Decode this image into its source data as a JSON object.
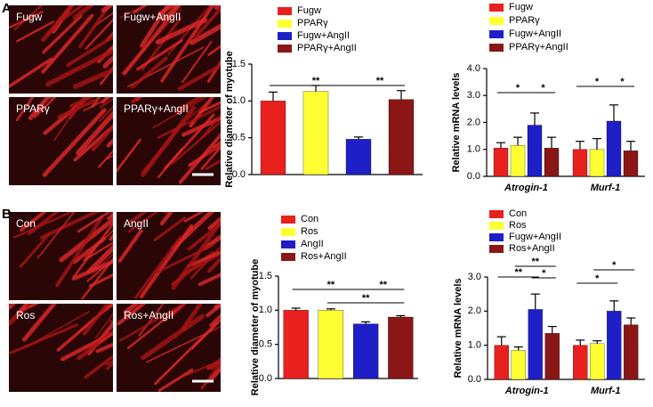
{
  "panel_labels": [
    "A",
    "B"
  ],
  "image_labels": [
    [
      "Fugw",
      "Fugw+AngII",
      "PPARγ",
      "PPARγ+AngII"
    ],
    [
      "Con",
      "AngII",
      "Ros",
      "Ros+AngII"
    ]
  ],
  "chart_data": [
    {
      "type": "bar",
      "ylabel": "Relative diameter of myotube",
      "categories": [
        "Fugw",
        "PPARγ",
        "Fugw+AngII",
        "PPARγ+AngII"
      ],
      "values": [
        1.0,
        1.13,
        0.48,
        1.02
      ],
      "errors": [
        0.12,
        0.08,
        0.03,
        0.12
      ],
      "colors": [
        "#e8201e",
        "#ffff33",
        "#1f1fc8",
        "#8b1616"
      ],
      "ylim": [
        0,
        1.5
      ],
      "yticks": [
        {
          "value": 0,
          "label": "0.0"
        },
        0.5,
        {
          "value": 1,
          "label": "1.0"
        },
        1.5
      ],
      "annotations": [
        "**",
        "**"
      ]
    },
    {
      "type": "grouped_bar",
      "ylabel": "Relative mRNA levels",
      "categories": [
        "Atrogin-1",
        "Murf-1"
      ],
      "series": [
        {
          "name": "Fugw",
          "color": "#e8201e",
          "values": [
            1.05,
            1.0
          ],
          "errors": [
            0.2,
            0.3
          ]
        },
        {
          "name": "PPARγ",
          "color": "#ffff33",
          "values": [
            1.15,
            1.0
          ],
          "errors": [
            0.3,
            0.4
          ]
        },
        {
          "name": "Fugw+AngII",
          "color": "#1f1fc8",
          "values": [
            1.9,
            2.05
          ],
          "errors": [
            0.45,
            0.6
          ]
        },
        {
          "name": "PPARγ+AngII",
          "color": "#8b1616",
          "values": [
            1.05,
            0.95
          ],
          "errors": [
            0.4,
            0.35
          ]
        }
      ],
      "ylim": [
        0,
        4
      ],
      "yticks": [
        {
          "value": 0,
          "label": "0.0"
        },
        {
          "value": 1,
          "label": "1.0"
        },
        {
          "value": 2,
          "label": "2.0"
        },
        {
          "value": 3,
          "label": "3.0"
        },
        {
          "value": 4,
          "label": "4.0"
        }
      ],
      "annotations": [
        "*",
        "*",
        "*",
        "*"
      ]
    },
    {
      "type": "bar",
      "ylabel": "Relative diameter of myotube",
      "categories": [
        "Con",
        "Ros",
        "AngII",
        "Ros+AngII"
      ],
      "values": [
        1.0,
        1.0,
        0.8,
        0.9
      ],
      "errors": [
        0.03,
        0.02,
        0.03,
        0.02
      ],
      "colors": [
        "#e8201e",
        "#ffff33",
        "#1f1fc8",
        "#8b1616"
      ],
      "ylim": [
        0,
        1.5
      ],
      "yticks": [
        {
          "value": 0,
          "label": "0.0"
        },
        0.5,
        {
          "value": 1,
          "label": "1.0"
        },
        1.5
      ],
      "annotations": [
        "**",
        "**",
        "**"
      ]
    },
    {
      "type": "grouped_bar",
      "ylabel": "Relative mRNA levels",
      "categories": [
        "Atrogin-1",
        "Murf-1"
      ],
      "series": [
        {
          "name": "Con",
          "color": "#e8201e",
          "values": [
            1.0,
            1.0
          ],
          "errors": [
            0.25,
            0.15
          ]
        },
        {
          "name": "Ros",
          "color": "#ffff33",
          "values": [
            0.85,
            1.05
          ],
          "errors": [
            0.1,
            0.08
          ]
        },
        {
          "name": "Fugw+AngII",
          "color": "#1f1fc8",
          "values": [
            2.05,
            2.0
          ],
          "errors": [
            0.45,
            0.3
          ]
        },
        {
          "name": "Ros+AngII",
          "color": "#8b1616",
          "values": [
            1.35,
            1.6
          ],
          "errors": [
            0.2,
            0.2
          ]
        }
      ],
      "ylim": [
        0,
        3
      ],
      "yticks": [
        {
          "value": 0,
          "label": "0.0"
        },
        {
          "value": 1,
          "label": "1.0"
        },
        {
          "value": 2,
          "label": "2.0"
        },
        {
          "value": 3,
          "label": "3.0"
        }
      ],
      "annotations": [
        "**",
        "**",
        "*",
        "*",
        "*"
      ]
    }
  ]
}
